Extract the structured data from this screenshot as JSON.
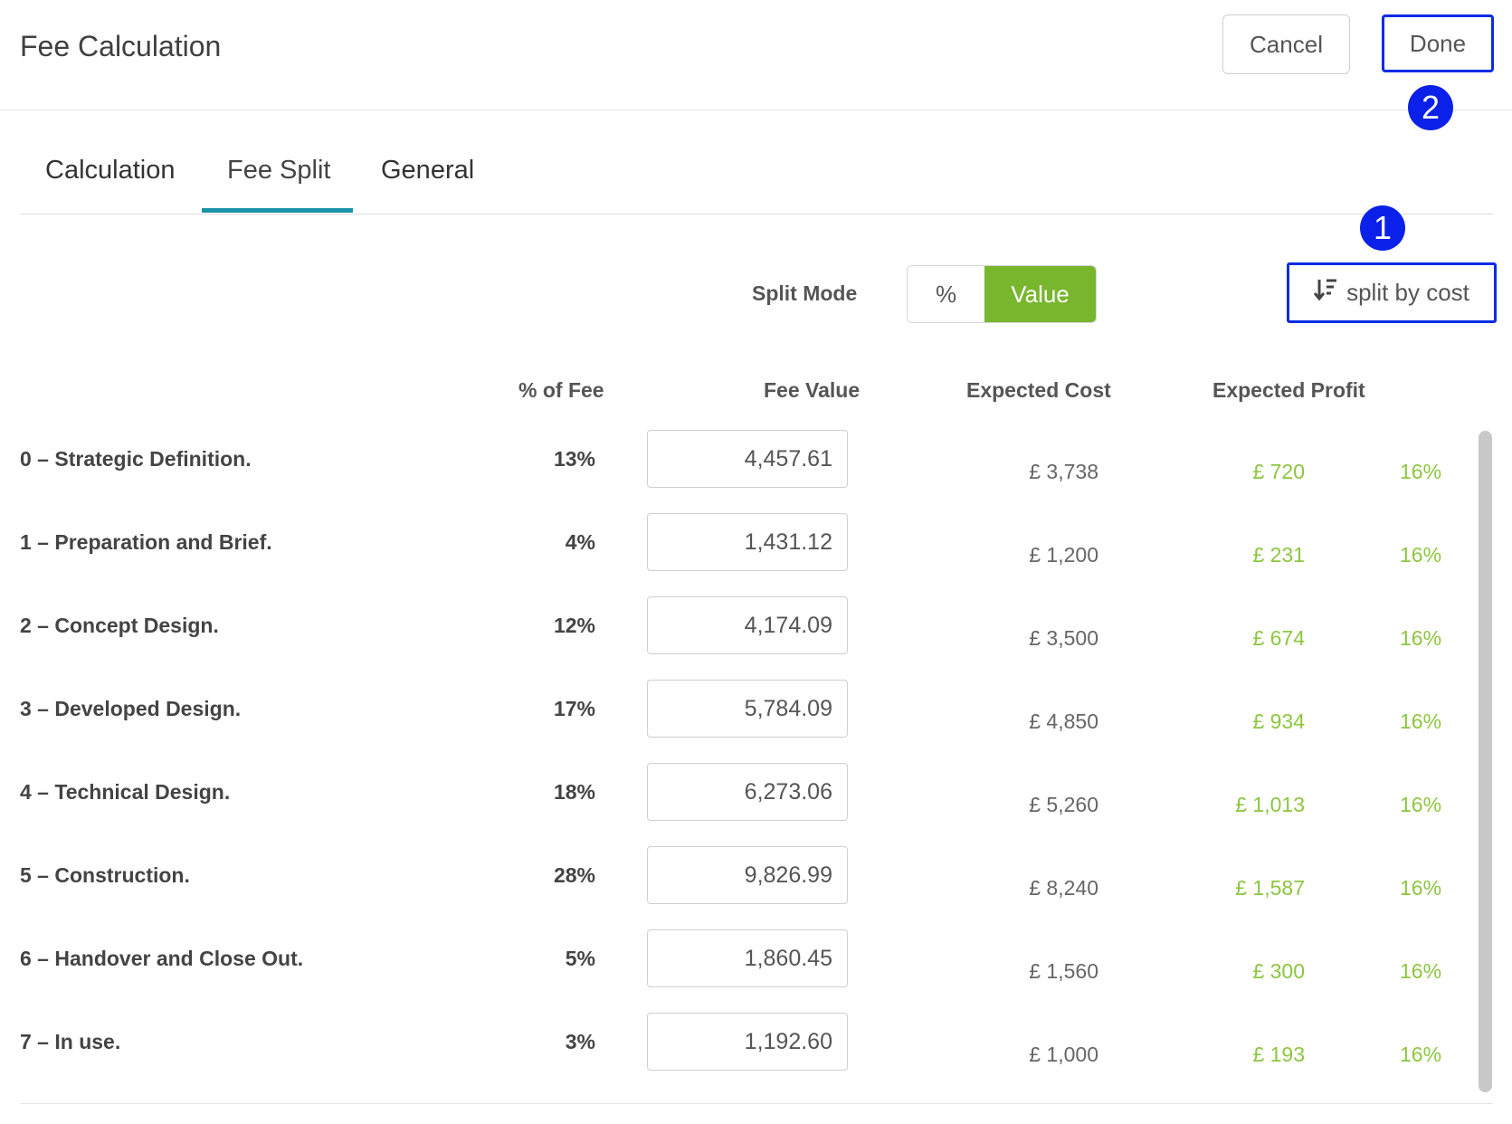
{
  "header": {
    "title": "Fee Calculation",
    "cancel_label": "Cancel",
    "done_label": "Done"
  },
  "markers": {
    "one": "1",
    "two": "2"
  },
  "tabs": [
    {
      "label": "Calculation"
    },
    {
      "label": "Fee Split",
      "active": true
    },
    {
      "label": "General"
    }
  ],
  "split_mode": {
    "label": "Split Mode",
    "options": [
      "%",
      "Value"
    ],
    "selected": "Value"
  },
  "split_by_cost": {
    "label": "split by cost",
    "icon": "sort-descending-icon"
  },
  "columns": {
    "pct": "% of Fee",
    "fee": "Fee Value",
    "cost": "Expected Cost",
    "profit": "Expected Profit"
  },
  "rows": [
    {
      "stage": "0 – Strategic Definition.",
      "pct": "13%",
      "fee": "4,457.61",
      "cost": "£ 3,738",
      "profit": "£ 720",
      "margin": "16%"
    },
    {
      "stage": "1 – Preparation and Brief.",
      "pct": "4%",
      "fee": "1,431.12",
      "cost": "£ 1,200",
      "profit": "£ 231",
      "margin": "16%"
    },
    {
      "stage": "2 – Concept Design.",
      "pct": "12%",
      "fee": "4,174.09",
      "cost": "£ 3,500",
      "profit": "£ 674",
      "margin": "16%"
    },
    {
      "stage": "3 – Developed Design.",
      "pct": "17%",
      "fee": "5,784.09",
      "cost": "£ 4,850",
      "profit": "£ 934",
      "margin": "16%"
    },
    {
      "stage": "4 – Technical Design.",
      "pct": "18%",
      "fee": "6,273.06",
      "cost": "£ 5,260",
      "profit": "£ 1,013",
      "margin": "16%"
    },
    {
      "stage": "5 – Construction.",
      "pct": "28%",
      "fee": "9,826.99",
      "cost": "£ 8,240",
      "profit": "£ 1,587",
      "margin": "16%"
    },
    {
      "stage": "6 – Handover and Close Out.",
      "pct": "5%",
      "fee": "1,860.45",
      "cost": "£ 1,560",
      "profit": "£ 300",
      "margin": "16%"
    },
    {
      "stage": "7 – In use.",
      "pct": "3%",
      "fee": "1,192.60",
      "cost": "£ 1,000",
      "profit": "£ 193",
      "margin": "16%"
    }
  ],
  "colors": {
    "accent_tab": "#1a93a8",
    "value_green": "#77b62d",
    "profit_green": "#8cc63f",
    "highlight_blue": "#0a2be6"
  }
}
